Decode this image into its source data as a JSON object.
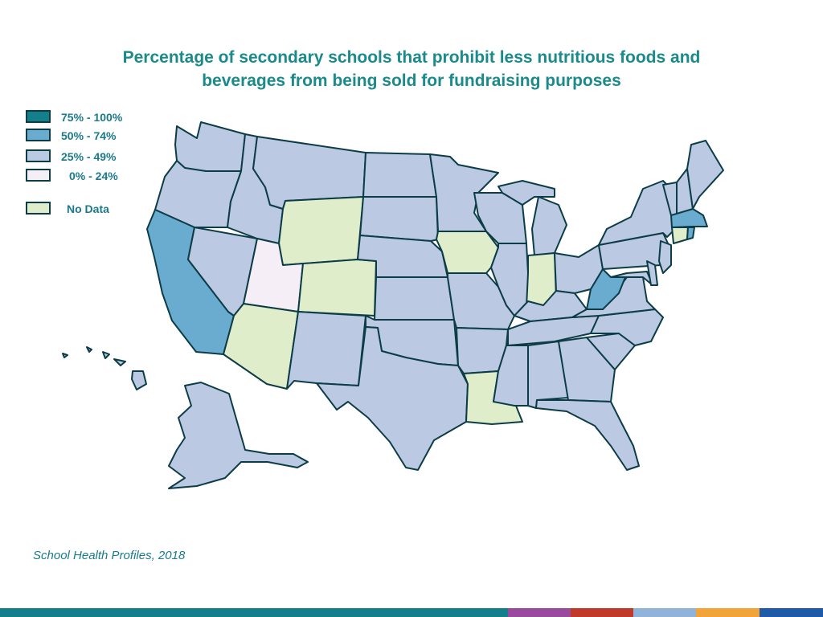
{
  "title": {
    "line1": "Percentage of secondary schools that prohibit less nutritious foods and",
    "line2": "beverages from being sold for fundraising purposes"
  },
  "legend": [
    {
      "label": "75% - 100%",
      "color": "#137f8a"
    },
    {
      "label": "50% - 74%",
      "color": "#6aabd0"
    },
    {
      "label": "25% - 49%",
      "color": "#bcc9e3"
    },
    {
      "label": "0% - 24%",
      "color": "#f5eef6"
    },
    {
      "label": "No Data",
      "color": "#dfedcb"
    }
  ],
  "colors": {
    "border": "#0c3d47",
    "title": "#1a8a8a",
    "text": "#1a7a8c"
  },
  "map": {
    "categories_by_state": {
      "50-74": [
        "California",
        "West Virginia",
        "Massachusetts",
        "Rhode Island"
      ],
      "0-24": [
        "Utah"
      ],
      "no_data": [
        "Wyoming",
        "Colorado",
        "Arizona",
        "Iowa",
        "Indiana",
        "Louisiana",
        "Connecticut"
      ],
      "25-49": [
        "Washington",
        "Oregon",
        "Idaho",
        "Montana",
        "Nevada",
        "North Dakota",
        "South Dakota",
        "Nebraska",
        "Kansas",
        "Oklahoma",
        "Texas",
        "New Mexico",
        "Minnesota",
        "Wisconsin",
        "Michigan",
        "Illinois",
        "Missouri",
        "Arkansas",
        "Mississippi",
        "Alabama",
        "Georgia",
        "Florida",
        "South Carolina",
        "North Carolina",
        "Tennessee",
        "Kentucky",
        "Ohio",
        "Virginia",
        "Pennsylvania",
        "New York",
        "Vermont",
        "New Hampshire",
        "Maine",
        "New Jersey",
        "Delaware",
        "Maryland",
        "Alaska",
        "Hawaii"
      ]
    }
  },
  "source": "School Health Profiles, 2018",
  "footer_colors": [
    "#137f8a",
    "#9a4a9c",
    "#c0392b",
    "#8fb3d9",
    "#f2a33a",
    "#1e5aa8"
  ]
}
